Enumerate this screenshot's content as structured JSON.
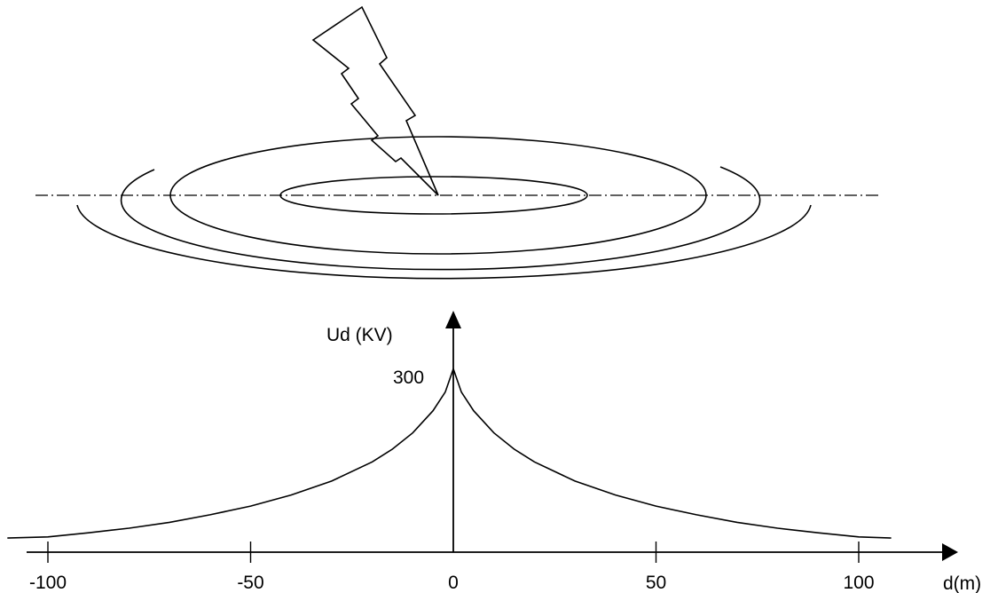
{
  "chart_data": {
    "type": "line",
    "xlabel": "d(m)",
    "ylabel": "Ud (KV)",
    "x_ticks": [
      -100,
      -50,
      0,
      50,
      100
    ],
    "x_tick_labels": [
      "-100",
      "-50",
      "0",
      "50",
      "100"
    ],
    "y_peak_label": "300",
    "xlim": [
      -110,
      120
    ],
    "ylim": [
      0,
      330
    ],
    "peak_value": 300,
    "series": [
      {
        "x": [
          -110,
          -100,
          -90,
          -80,
          -70,
          -60,
          -50,
          -40,
          -30,
          -20,
          -15,
          -10,
          -5,
          -2,
          0,
          2,
          5,
          10,
          15,
          20,
          30,
          40,
          50,
          60,
          70,
          80,
          90,
          100,
          108
        ],
        "values": [
          9,
          11,
          18,
          26,
          36,
          49,
          64,
          83,
          107,
          140,
          162,
          190,
          228,
          260,
          300,
          260,
          228,
          190,
          162,
          140,
          107,
          83,
          64,
          49,
          36,
          26,
          18,
          11,
          9
        ]
      }
    ]
  }
}
